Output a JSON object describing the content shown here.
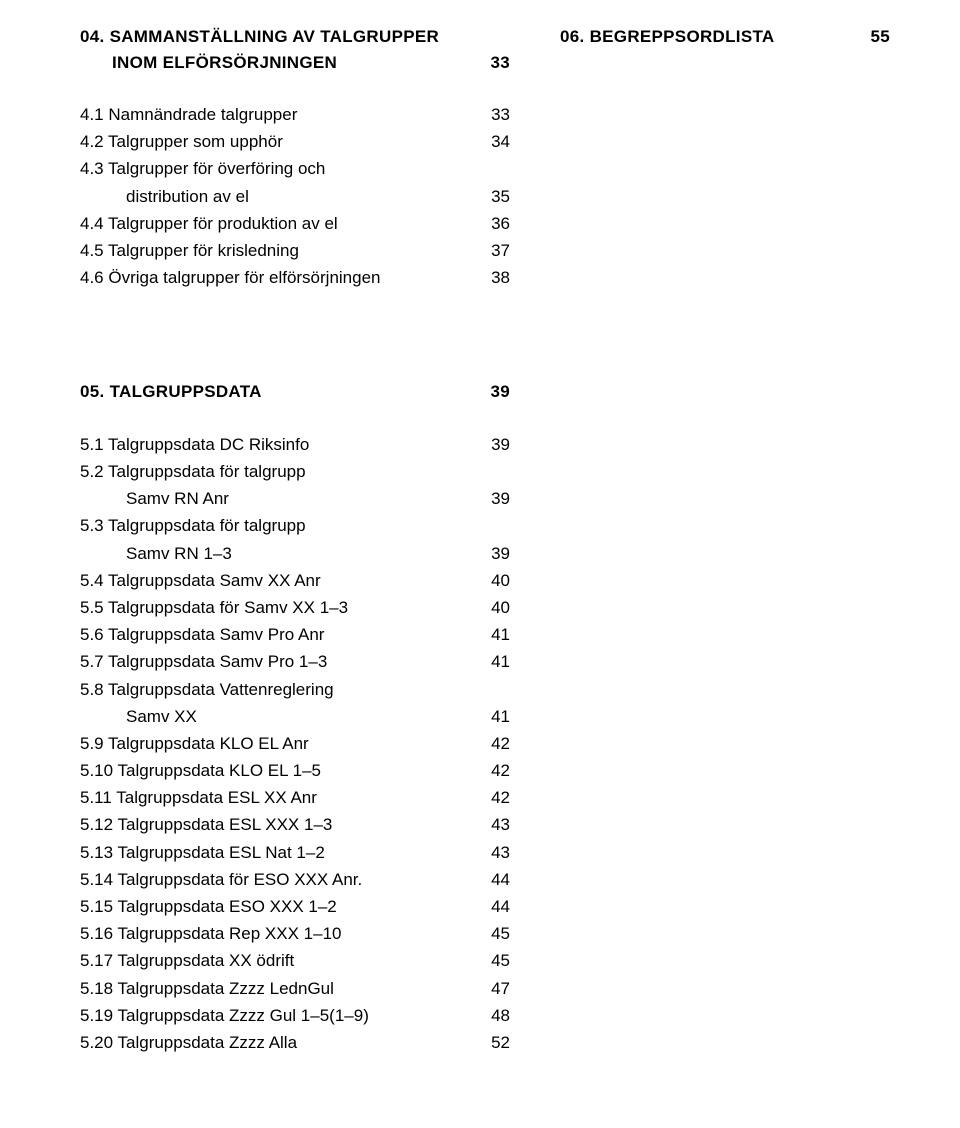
{
  "left": {
    "section04": {
      "num": "04.",
      "title_line1": "SAMMANSTÄLLNING AV TALGRUPPER",
      "title_line2": "INOM ELFÖRSÖRJNINGEN",
      "page": "33",
      "items": [
        {
          "label": "4.1 Namnändrade talgrupper",
          "page": "33"
        },
        {
          "label": "4.2 Talgrupper som upphör",
          "page": "34"
        },
        {
          "label": "4.3 Talgrupper för överföring och",
          "page": ""
        },
        {
          "label_indent": "distribution av el",
          "page": "35"
        },
        {
          "label": "4.4 Talgrupper för produktion av el",
          "page": "36"
        },
        {
          "label": "4.5 Talgrupper för krisledning",
          "page": "37"
        },
        {
          "label": "4.6 Övriga talgrupper för elförsörjningen",
          "page": "38"
        }
      ]
    },
    "section05": {
      "num": "05.",
      "title": "TALGRUPPSDATA",
      "page": "39",
      "items": [
        {
          "label": "5.1 Talgruppsdata DC Riksinfo",
          "page": "39"
        },
        {
          "label": "5.2 Talgruppsdata för talgrupp",
          "page": ""
        },
        {
          "label_indent": "Samv RN Anr",
          "page": "39"
        },
        {
          "label": "5.3 Talgruppsdata för talgrupp",
          "page": ""
        },
        {
          "label_indent": "Samv RN 1–3",
          "page": "39"
        },
        {
          "label": "5.4 Talgruppsdata Samv XX Anr",
          "page": "40"
        },
        {
          "label": "5.5 Talgruppsdata för Samv XX 1–3",
          "page": "40"
        },
        {
          "label": "5.6 Talgruppsdata Samv Pro Anr",
          "page": "41"
        },
        {
          "label": "5.7 Talgruppsdata Samv Pro 1–3",
          "page": "41"
        },
        {
          "label": "5.8 Talgruppsdata Vattenreglering",
          "page": ""
        },
        {
          "label_indent": "Samv XX",
          "page": "41"
        },
        {
          "label": "5.9 Talgruppsdata KLO EL Anr",
          "page": "42"
        },
        {
          "label": "5.10 Talgruppsdata KLO EL 1–5",
          "page": "42"
        },
        {
          "label": "5.11 Talgruppsdata ESL XX Anr",
          "page": "42"
        },
        {
          "label": "5.12 Talgruppsdata ESL XXX 1–3",
          "page": "43"
        },
        {
          "label": "5.13 Talgruppsdata ESL Nat 1–2",
          "page": "43"
        },
        {
          "label": "5.14 Talgruppsdata för ESO XXX Anr.",
          "page": "44"
        },
        {
          "label": "5.15 Talgruppsdata ESO XXX 1–2",
          "page": "44"
        },
        {
          "label": "5.16 Talgruppsdata Rep XXX 1–10",
          "page": "45"
        },
        {
          "label": "5.17 Talgruppsdata XX ödrift",
          "page": "45"
        },
        {
          "label": "5.18 Talgruppsdata Zzzz LednGul",
          "page": "47"
        },
        {
          "label": "5.19 Talgruppsdata Zzzz Gul 1–5(1–9)",
          "page": "48"
        },
        {
          "label": "5.20 Talgruppsdata Zzzz Alla",
          "page": "52"
        }
      ]
    }
  },
  "right": {
    "section06": {
      "num": "06.",
      "title": "BEGREPPSORDLISTA",
      "page": "55"
    }
  }
}
